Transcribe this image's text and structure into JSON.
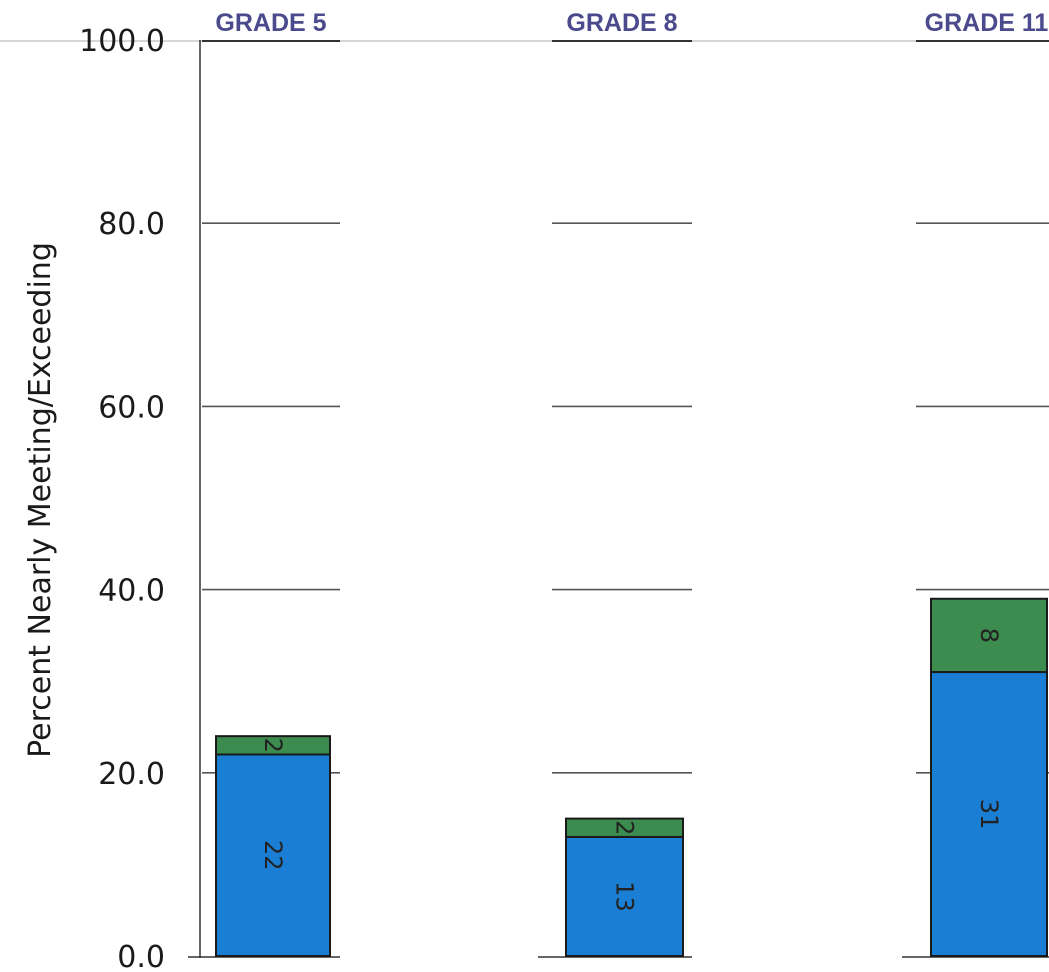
{
  "chart_data": {
    "type": "bar",
    "stacked": true,
    "categories": [
      "GRADE 5",
      "GRADE 8",
      "GRADE 11"
    ],
    "series": [
      {
        "values": [
          22,
          13,
          31
        ],
        "labels": [
          "22",
          "13",
          "31"
        ],
        "color": "#1a7fd4"
      },
      {
        "values": [
          2,
          2,
          8
        ],
        "labels": [
          "2",
          "2",
          "8"
        ],
        "color": "#3d8c4f"
      }
    ],
    "ylabel": "Percent Nearly Meeting/Exceeding",
    "ylim": [
      0,
      100
    ],
    "yticks": [
      "0.0",
      "20.0",
      "40.0",
      "60.0",
      "80.0",
      "100.0"
    ],
    "grid": true,
    "header_color": "#4a4a8c"
  }
}
